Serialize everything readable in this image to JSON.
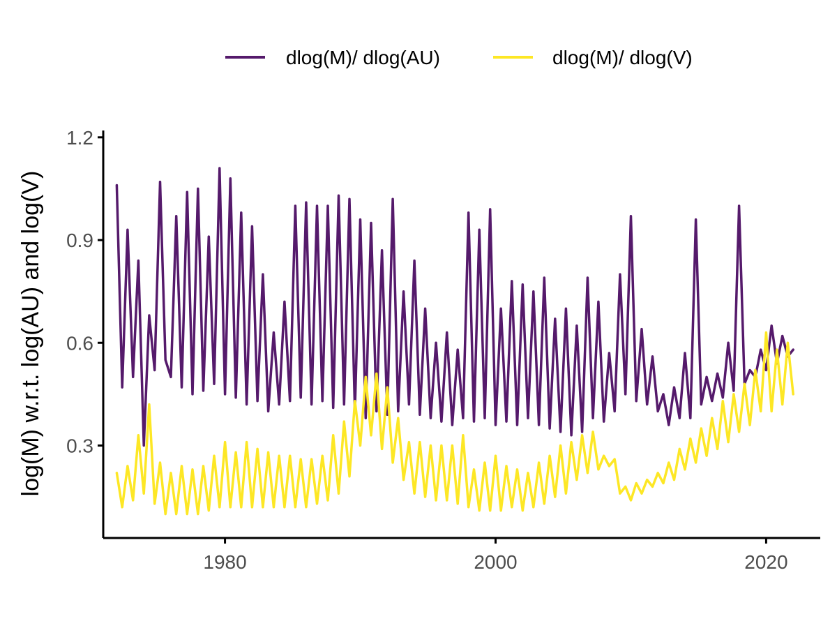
{
  "chart_data": {
    "type": "line",
    "title": "",
    "xlabel": "",
    "ylabel": "log(M) w.r.t. log(AU) and log(V)",
    "xlim": [
      1971,
      2024
    ],
    "ylim": [
      0.03,
      1.22
    ],
    "x_ticks": [
      1980,
      2000,
      2020
    ],
    "x_tick_labels": [
      "1980",
      "2000",
      "2020"
    ],
    "y_ticks": [
      0.3,
      0.6,
      0.9,
      1.2
    ],
    "y_tick_labels": [
      "0.3",
      "0.6",
      "0.9",
      "1.2"
    ],
    "grid": false,
    "legend_position": "top",
    "series": [
      {
        "name": "dlog(M)/ dlog(AU)",
        "color": "#551a6b",
        "x": [
          1972.0,
          1972.4,
          1972.8,
          1973.2,
          1973.6,
          1974.0,
          1974.4,
          1974.8,
          1975.2,
          1975.6,
          1976.0,
          1976.4,
          1976.8,
          1977.2,
          1977.6,
          1978.0,
          1978.4,
          1978.8,
          1979.2,
          1979.6,
          1980.0,
          1980.4,
          1980.8,
          1981.2,
          1981.6,
          1982.0,
          1982.4,
          1982.8,
          1983.2,
          1983.6,
          1984.0,
          1984.4,
          1984.8,
          1985.2,
          1985.6,
          1986.0,
          1986.4,
          1986.8,
          1987.2,
          1987.6,
          1988.0,
          1988.4,
          1988.8,
          1989.2,
          1989.6,
          1990.0,
          1990.4,
          1990.8,
          1991.2,
          1991.6,
          1992.0,
          1992.4,
          1992.8,
          1993.2,
          1993.6,
          1994.0,
          1994.4,
          1994.8,
          1995.2,
          1995.6,
          1996.0,
          1996.4,
          1996.8,
          1997.2,
          1997.6,
          1998.0,
          1998.4,
          1998.8,
          1999.2,
          1999.6,
          2000.0,
          2000.4,
          2000.8,
          2001.2,
          2001.6,
          2002.0,
          2002.4,
          2002.8,
          2003.2,
          2003.6,
          2004.0,
          2004.4,
          2004.8,
          2005.2,
          2005.6,
          2006.0,
          2006.4,
          2006.8,
          2007.2,
          2007.6,
          2008.0,
          2008.4,
          2008.8,
          2009.2,
          2009.6,
          2010.0,
          2010.4,
          2010.8,
          2011.2,
          2011.6,
          2012.0,
          2012.4,
          2012.8,
          2013.2,
          2013.6,
          2014.0,
          2014.4,
          2014.8,
          2015.2,
          2015.6,
          2016.0,
          2016.4,
          2016.8,
          2017.2,
          2017.6,
          2018.0,
          2018.4,
          2018.8,
          2019.2,
          2019.6,
          2020.0,
          2020.4,
          2020.8,
          2021.2,
          2021.6,
          2022.0
        ],
        "values": [
          1.06,
          0.47,
          0.93,
          0.5,
          0.84,
          0.3,
          0.68,
          0.52,
          1.07,
          0.55,
          0.5,
          0.97,
          0.47,
          1.04,
          0.45,
          1.05,
          0.46,
          0.91,
          0.48,
          1.11,
          0.45,
          1.08,
          0.44,
          0.98,
          0.42,
          0.94,
          0.43,
          0.8,
          0.4,
          0.63,
          0.42,
          0.72,
          0.43,
          1.0,
          0.44,
          1.01,
          0.42,
          1.0,
          0.43,
          1.0,
          0.41,
          1.03,
          0.42,
          1.02,
          0.4,
          0.96,
          0.38,
          0.95,
          0.4,
          0.87,
          0.39,
          1.02,
          0.4,
          0.75,
          0.42,
          0.84,
          0.39,
          0.7,
          0.38,
          0.6,
          0.37,
          0.63,
          0.36,
          0.58,
          0.38,
          0.98,
          0.37,
          0.93,
          0.38,
          0.99,
          0.36,
          0.7,
          0.37,
          0.78,
          0.36,
          0.77,
          0.38,
          0.75,
          0.36,
          0.79,
          0.35,
          0.67,
          0.34,
          0.7,
          0.33,
          0.65,
          0.34,
          0.79,
          0.38,
          0.72,
          0.37,
          0.57,
          0.4,
          0.8,
          0.45,
          0.97,
          0.43,
          0.64,
          0.42,
          0.56,
          0.4,
          0.45,
          0.36,
          0.47,
          0.38,
          0.57,
          0.38,
          0.96,
          0.42,
          0.5,
          0.43,
          0.51,
          0.44,
          0.6,
          0.46,
          1.0,
          0.48,
          0.52,
          0.5,
          0.58,
          0.52,
          0.65,
          0.54,
          0.62,
          0.56,
          0.58
        ]
      },
      {
        "name": "dlog(M)/ dlog(V)",
        "color": "#fde725",
        "x": [
          1972.0,
          1972.4,
          1972.8,
          1973.2,
          1973.6,
          1974.0,
          1974.4,
          1974.8,
          1975.2,
          1975.6,
          1976.0,
          1976.4,
          1976.8,
          1977.2,
          1977.6,
          1978.0,
          1978.4,
          1978.8,
          1979.2,
          1979.6,
          1980.0,
          1980.4,
          1980.8,
          1981.2,
          1981.6,
          1982.0,
          1982.4,
          1982.8,
          1983.2,
          1983.6,
          1984.0,
          1984.4,
          1984.8,
          1985.2,
          1985.6,
          1986.0,
          1986.4,
          1986.8,
          1987.2,
          1987.6,
          1988.0,
          1988.4,
          1988.8,
          1989.2,
          1989.6,
          1990.0,
          1990.4,
          1990.8,
          1991.2,
          1991.6,
          1992.0,
          1992.4,
          1992.8,
          1993.2,
          1993.6,
          1994.0,
          1994.4,
          1994.8,
          1995.2,
          1995.6,
          1996.0,
          1996.4,
          1996.8,
          1997.2,
          1997.6,
          1998.0,
          1998.4,
          1998.8,
          1999.2,
          1999.6,
          2000.0,
          2000.4,
          2000.8,
          2001.2,
          2001.6,
          2002.0,
          2002.4,
          2002.8,
          2003.2,
          2003.6,
          2004.0,
          2004.4,
          2004.8,
          2005.2,
          2005.6,
          2006.0,
          2006.4,
          2006.8,
          2007.2,
          2007.6,
          2008.0,
          2008.4,
          2008.8,
          2009.2,
          2009.6,
          2010.0,
          2010.4,
          2010.8,
          2011.2,
          2011.6,
          2012.0,
          2012.4,
          2012.8,
          2013.2,
          2013.6,
          2014.0,
          2014.4,
          2014.8,
          2015.2,
          2015.6,
          2016.0,
          2016.4,
          2016.8,
          2017.2,
          2017.6,
          2018.0,
          2018.4,
          2018.8,
          2019.2,
          2019.6,
          2020.0,
          2020.4,
          2020.8,
          2021.2,
          2021.6,
          2022.0
        ],
        "values": [
          0.22,
          0.12,
          0.24,
          0.14,
          0.33,
          0.16,
          0.42,
          0.13,
          0.25,
          0.1,
          0.22,
          0.1,
          0.24,
          0.1,
          0.23,
          0.1,
          0.24,
          0.11,
          0.27,
          0.12,
          0.31,
          0.12,
          0.28,
          0.12,
          0.31,
          0.12,
          0.29,
          0.12,
          0.28,
          0.12,
          0.27,
          0.12,
          0.27,
          0.12,
          0.26,
          0.12,
          0.26,
          0.13,
          0.27,
          0.14,
          0.33,
          0.16,
          0.37,
          0.21,
          0.43,
          0.3,
          0.5,
          0.33,
          0.51,
          0.29,
          0.47,
          0.25,
          0.38,
          0.2,
          0.31,
          0.16,
          0.31,
          0.15,
          0.3,
          0.14,
          0.3,
          0.14,
          0.3,
          0.13,
          0.33,
          0.12,
          0.23,
          0.11,
          0.25,
          0.11,
          0.27,
          0.11,
          0.24,
          0.12,
          0.23,
          0.11,
          0.22,
          0.12,
          0.25,
          0.13,
          0.27,
          0.15,
          0.3,
          0.16,
          0.31,
          0.2,
          0.33,
          0.22,
          0.34,
          0.23,
          0.27,
          0.24,
          0.26,
          0.16,
          0.18,
          0.14,
          0.19,
          0.16,
          0.2,
          0.18,
          0.22,
          0.19,
          0.25,
          0.2,
          0.29,
          0.23,
          0.32,
          0.25,
          0.35,
          0.27,
          0.38,
          0.29,
          0.43,
          0.31,
          0.45,
          0.34,
          0.48,
          0.36,
          0.52,
          0.4,
          0.63,
          0.4,
          0.58,
          0.42,
          0.6,
          0.45
        ]
      }
    ]
  }
}
